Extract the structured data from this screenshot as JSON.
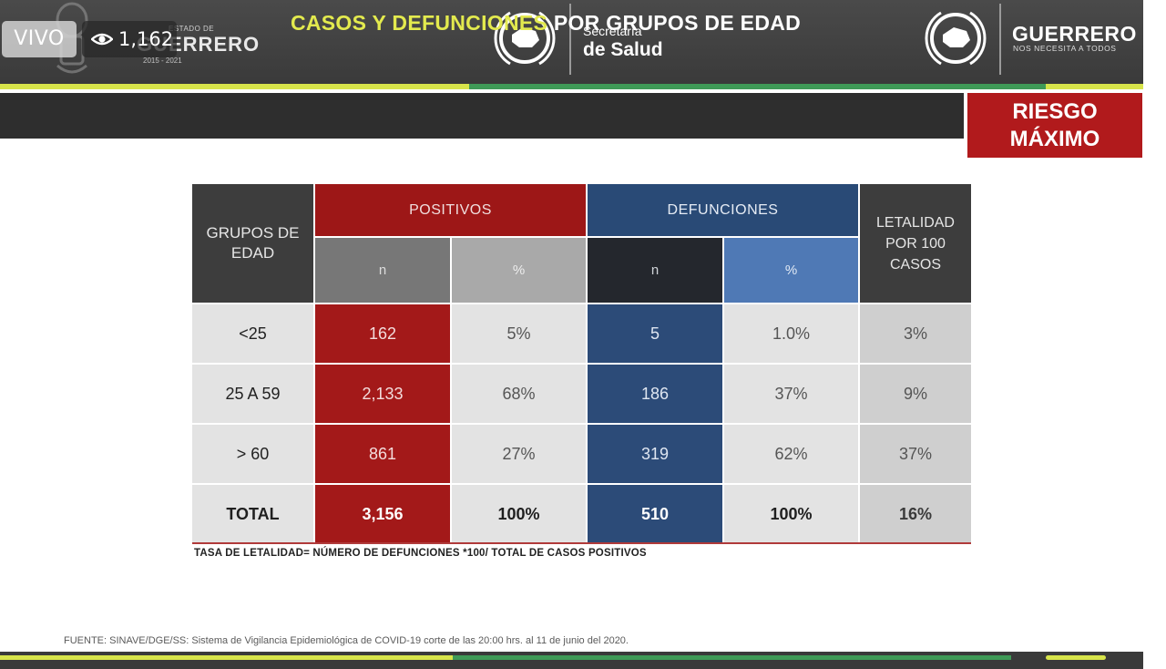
{
  "overlay": {
    "live_label": "VIVO",
    "viewer_count": "1,162"
  },
  "header": {
    "left_estado": "ESTADO DE",
    "left_name": "GUERRERO",
    "left_years": "2015 - 2021",
    "center_line1": "Secretaría",
    "center_line2": "de Salud",
    "right_name": "GUERRERO",
    "right_slogan": "NOS NECESITA A TODOS"
  },
  "title": {
    "part1": "CASOS Y DEFUNCIONES",
    "part2": " POR GRUPOS DE EDAD"
  },
  "risk": {
    "line1": "RIESGO",
    "line2": "MÁXIMO"
  },
  "table": {
    "headers": {
      "group": "GRUPOS DE EDAD",
      "positivos": "POSITIVOS",
      "defunciones": "DEFUNCIONES",
      "letalidad": "LETALIDAD POR 100 CASOS",
      "n": "n",
      "pct": "%"
    },
    "rows": [
      {
        "group": "<25",
        "pos_n": "162",
        "pos_pct": "5%",
        "def_n": "5",
        "def_pct": "1.0%",
        "let": "3%"
      },
      {
        "group": "25 A 59",
        "pos_n": "2,133",
        "pos_pct": "68%",
        "def_n": "186",
        "def_pct": "37%",
        "let": "9%"
      },
      {
        "group": "> 60",
        "pos_n": "861",
        "pos_pct": "27%",
        "def_n": "319",
        "def_pct": "62%",
        "let": "37%"
      }
    ],
    "total": {
      "group": "TOTAL",
      "pos_n": "3,156",
      "pos_pct": "100%",
      "def_n": "510",
      "def_pct": "100%",
      "let": "16%"
    }
  },
  "note": "TASA DE LETALIDAD= NÚMERO DE DEFUNCIONES *100/ TOTAL DE CASOS POSITIVOS",
  "source": "FUENTE: SINAVE/DGE/SS: Sistema de Vigilancia Epidemiológica de COVID-19 corte de las 20:00 hrs. al 11 de junio del 2020.",
  "colors": {
    "positivos_red": "#a31919",
    "defunciones_blue": "#2c4b78",
    "accent_yellow": "#d7e44a",
    "accent_green": "#3f9a57",
    "risk_red": "#b11a1c"
  },
  "icons": {
    "viewer": "eye-icon",
    "emblem": "state-emblem-icon",
    "seal": "state-seal-icon"
  }
}
